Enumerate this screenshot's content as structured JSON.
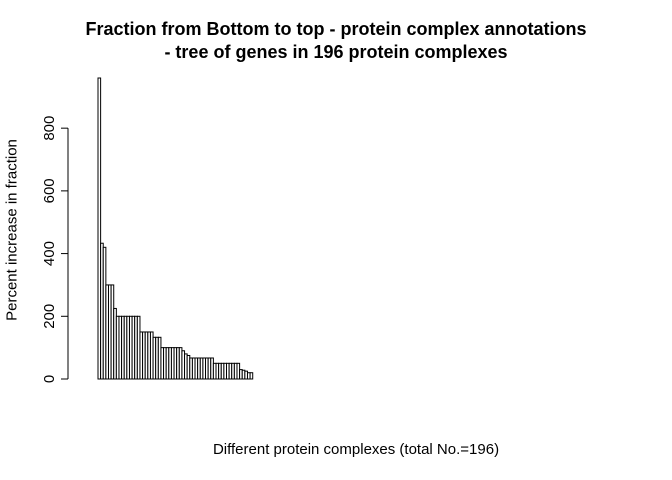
{
  "chart_data": {
    "type": "bar",
    "title": "Fraction from Bottom to top - protein complex annotations",
    "subtitle": "- tree of genes in 196 protein complexes",
    "xlabel": "Different protein complexes (total No.=196)",
    "ylabel": "Percent increase in fraction",
    "n_bars": 196,
    "ylim": [
      0,
      960
    ],
    "y_ticks": [
      0,
      200,
      400,
      600,
      800
    ],
    "values": [
      960,
      433,
      420,
      300,
      300,
      300,
      225,
      200,
      200,
      200,
      200,
      200,
      200,
      200,
      200,
      200,
      150,
      150,
      150,
      150,
      150,
      133,
      133,
      133,
      100,
      100,
      100,
      100,
      100,
      100,
      100,
      100,
      90,
      80,
      75,
      67,
      67,
      67,
      67,
      67,
      67,
      67,
      67,
      67,
      50,
      50,
      50,
      50,
      50,
      50,
      50,
      50,
      50,
      50,
      30,
      28,
      25,
      20,
      20,
      0,
      0,
      0,
      0,
      0,
      0,
      0,
      0,
      0,
      0,
      0,
      0,
      0,
      0,
      0,
      0,
      0,
      0,
      0,
      0,
      0,
      0,
      0,
      0,
      0,
      0,
      0,
      0,
      0,
      0,
      0,
      0,
      0,
      0,
      0,
      0,
      0,
      0,
      0,
      0,
      0,
      0,
      0,
      0,
      0,
      0,
      0,
      0,
      0,
      0,
      0,
      0,
      0,
      0,
      0,
      0,
      0,
      0,
      0,
      0,
      0,
      0,
      0,
      0,
      0,
      0,
      0,
      0,
      0,
      0,
      0,
      0,
      0,
      0,
      0,
      0,
      0,
      0,
      0,
      0,
      0,
      0,
      0,
      0,
      0,
      0,
      0,
      0,
      0,
      0,
      0,
      0,
      0,
      0,
      0,
      0,
      0,
      0,
      0,
      0,
      0,
      0,
      0,
      0,
      0,
      0,
      0,
      0,
      0,
      0,
      0,
      0,
      0,
      0,
      0,
      0,
      0,
      0,
      0,
      0,
      0,
      0,
      0,
      0,
      0,
      0,
      0,
      0,
      0,
      0,
      0,
      0,
      0,
      0,
      0,
      0,
      0
    ],
    "bar_fill": "#ffffff",
    "bar_border": "#000000",
    "grid": false
  }
}
